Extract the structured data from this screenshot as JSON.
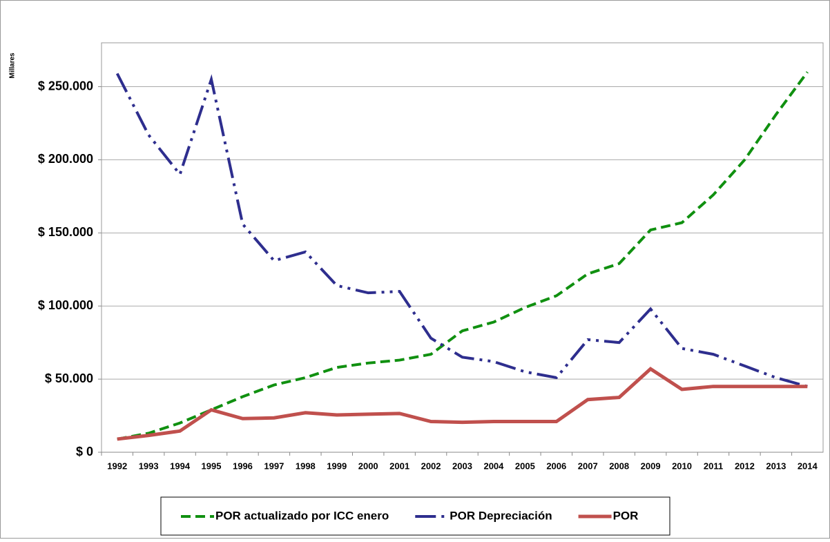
{
  "chart_data": {
    "type": "line",
    "y_axis_label": "Millares",
    "categories": [
      "1992",
      "1993",
      "1994",
      "1995",
      "1996",
      "1997",
      "1998",
      "1999",
      "2000",
      "2001",
      "2002",
      "2003",
      "2004",
      "2005",
      "2006",
      "2007",
      "2008",
      "2009",
      "2010",
      "2011",
      "2012",
      "2013",
      "2014"
    ],
    "series": [
      {
        "name": "POR actualizado por ICC enero",
        "color": "#109010",
        "line_style": "dashed",
        "values": [
          9000,
          13000,
          20000,
          29000,
          38000,
          46000,
          51000,
          58000,
          61000,
          63000,
          67000,
          83000,
          89000,
          99000,
          107000,
          122000,
          129000,
          152000,
          157000,
          176000,
          200000,
          231000,
          260000
        ]
      },
      {
        "name": "POR Depreciación",
        "color": "#2e2e8e",
        "line_style": "dash-dot-dot",
        "values": [
          259000,
          217000,
          190000,
          255000,
          156000,
          131000,
          137000,
          114000,
          109000,
          110000,
          78000,
          65000,
          62000,
          55000,
          51000,
          77000,
          75000,
          98000,
          71000,
          67000,
          59000,
          51000,
          45000
        ]
      },
      {
        "name": "POR",
        "color": "#c0504d",
        "line_style": "solid",
        "values": [
          9000,
          11500,
          14500,
          29000,
          23000,
          23500,
          27000,
          25500,
          26000,
          26500,
          21000,
          20500,
          21000,
          21000,
          21000,
          36000,
          37500,
          57000,
          43000,
          45000,
          45000,
          45000,
          45000
        ]
      }
    ],
    "ylim": [
      0,
      280000
    ],
    "yticks": [
      {
        "value": 0,
        "label": "$ 0"
      },
      {
        "value": 50000,
        "label": "$ 50.000"
      },
      {
        "value": 100000,
        "label": "$ 100.000"
      },
      {
        "value": 150000,
        "label": "$ 150.000"
      },
      {
        "value": 200000,
        "label": "$ 200.000"
      },
      {
        "value": 250000,
        "label": "$ 250.000"
      }
    ],
    "grid": true,
    "legend": "bottom"
  }
}
